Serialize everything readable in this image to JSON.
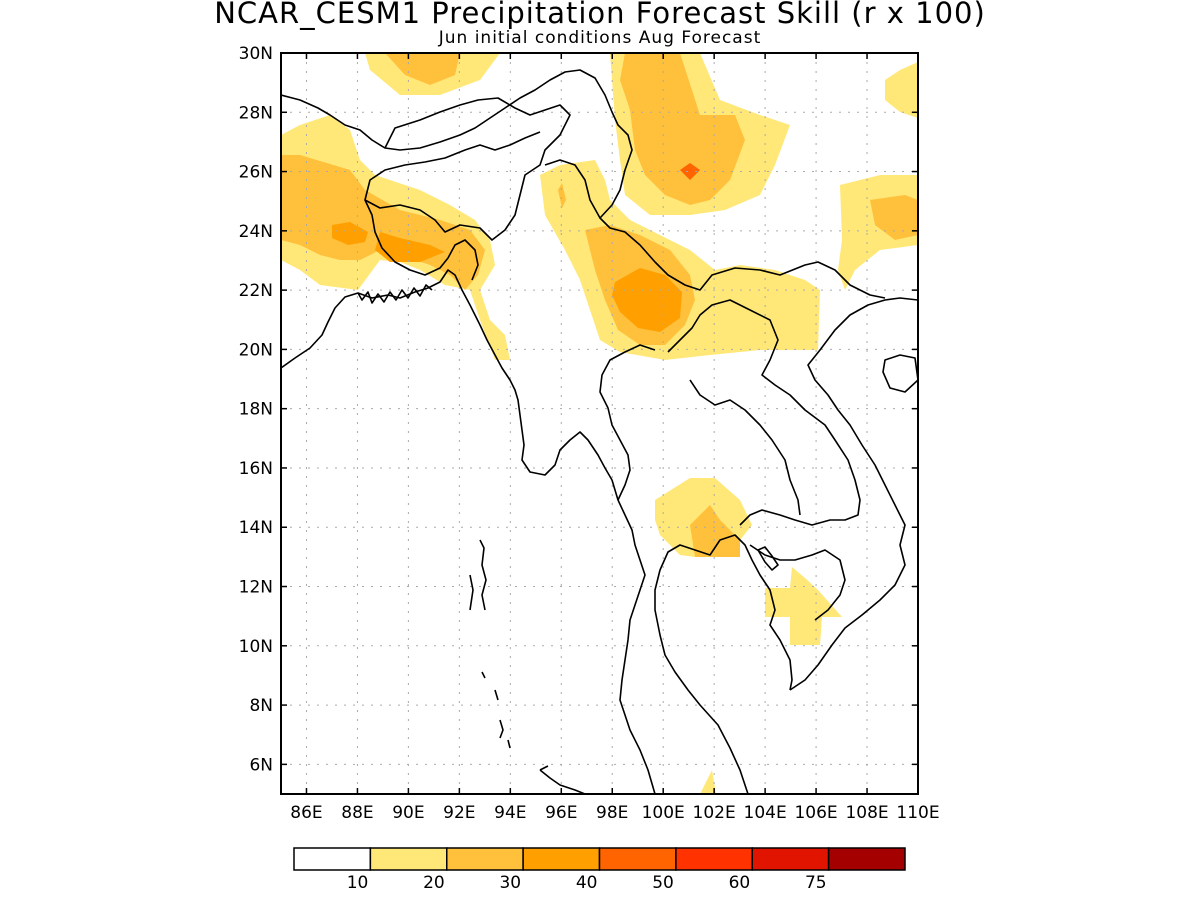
{
  "title": "NCAR_CESM1 Precipitation Forecast Skill (r x 100)",
  "subtitle": "Jun initial conditions  Aug Forecast",
  "map": {
    "lon_range": [
      85,
      110
    ],
    "lat_range": [
      5,
      30
    ],
    "lon_ticks": [
      "86E",
      "88E",
      "90E",
      "92E",
      "94E",
      "96E",
      "98E",
      "100E",
      "102E",
      "104E",
      "106E",
      "108E",
      "110E"
    ],
    "lat_ticks": [
      "6N",
      "8N",
      "10N",
      "12N",
      "14N",
      "16N",
      "18N",
      "20N",
      "22N",
      "24N",
      "26N",
      "28N",
      "30N"
    ],
    "grid": "dotted"
  },
  "colorbar": {
    "colors": [
      "#ffffff",
      "#ffe878",
      "#ffc03c",
      "#ffa000",
      "#ff6400",
      "#ff3200",
      "#e11400",
      "#a50000"
    ],
    "labels": [
      "10",
      "20",
      "30",
      "40",
      "50",
      "60",
      "75"
    ]
  }
}
